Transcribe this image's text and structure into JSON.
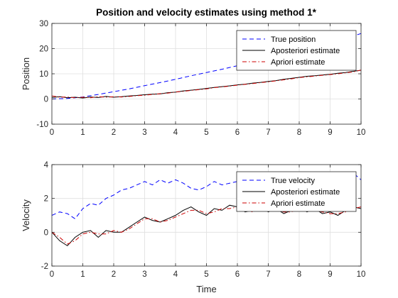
{
  "figure": {
    "background": "#ffffff"
  },
  "chart_data": [
    {
      "type": "line",
      "title": "Position and velocity estimates using method 1*",
      "xlabel": "",
      "ylabel": "Position",
      "xlim": [
        0,
        10
      ],
      "ylim": [
        -10,
        30
      ],
      "xticks": [
        0,
        1,
        2,
        3,
        4,
        5,
        6,
        7,
        8,
        9,
        10
      ],
      "yticks": [
        -10,
        0,
        10,
        20,
        30
      ],
      "grid": true,
      "legend_position": "top-right",
      "series": [
        {
          "name": "True position",
          "color": "#0000ff",
          "style": "dashed",
          "x": [
            0,
            0.5,
            1,
            1.5,
            2,
            2.5,
            3,
            3.5,
            4,
            4.5,
            5,
            5.5,
            6,
            6.5,
            7,
            7.5,
            8,
            8.5,
            9,
            9.5,
            10
          ],
          "y": [
            0,
            0.2,
            0.8,
            1.8,
            2.9,
            4.0,
            5.3,
            6.5,
            7.8,
            9.2,
            10.5,
            11.8,
            13.2,
            14.5,
            15.8,
            17.2,
            18.8,
            20.3,
            22.0,
            24.0,
            26.0
          ]
        },
        {
          "name": "Aposteriori estimate",
          "color": "#000000",
          "style": "solid",
          "x": [
            0,
            0.25,
            0.5,
            0.75,
            1,
            1.25,
            1.5,
            1.75,
            2,
            2.25,
            2.5,
            2.75,
            3,
            3.25,
            3.5,
            3.75,
            4,
            4.25,
            4.5,
            4.75,
            5,
            5.25,
            5.5,
            5.75,
            6,
            6.25,
            6.5,
            6.75,
            7,
            7.25,
            7.5,
            7.75,
            8,
            8.25,
            8.5,
            8.75,
            9,
            9.25,
            9.5,
            9.75,
            10
          ],
          "y": [
            0.6,
            0.9,
            0.5,
            0.7,
            0.4,
            0.8,
            0.6,
            1.0,
            0.7,
            0.9,
            1.2,
            1.4,
            1.7,
            1.9,
            2.0,
            2.5,
            2.7,
            3.2,
            3.5,
            3.8,
            4.2,
            4.6,
            4.9,
            5.2,
            5.6,
            5.9,
            6.3,
            6.6,
            7.0,
            7.3,
            7.8,
            8.2,
            8.6,
            9.0,
            9.2,
            9.5,
            9.8,
            10.2,
            10.5,
            11.0,
            11.4
          ]
        },
        {
          "name": "Apriori estimate",
          "color": "#cc0000",
          "style": "dashdot",
          "x": [
            0,
            0.25,
            0.5,
            0.75,
            1,
            1.25,
            1.5,
            1.75,
            2,
            2.25,
            2.5,
            2.75,
            3,
            3.25,
            3.5,
            3.75,
            4,
            4.25,
            4.5,
            4.75,
            5,
            5.25,
            5.5,
            5.75,
            6,
            6.25,
            6.5,
            6.75,
            7,
            7.25,
            7.5,
            7.75,
            8,
            8.25,
            8.5,
            8.75,
            9,
            9.25,
            9.5,
            9.75,
            10
          ],
          "y": [
            1.2,
            0.7,
            0.8,
            0.5,
            0.7,
            0.5,
            0.9,
            0.7,
            0.9,
            0.8,
            1.0,
            1.3,
            1.5,
            1.8,
            2.1,
            2.3,
            2.8,
            3.0,
            3.4,
            3.7,
            4.0,
            4.5,
            4.8,
            5.1,
            5.5,
            5.8,
            6.1,
            6.5,
            6.8,
            7.2,
            7.6,
            8.0,
            8.5,
            8.8,
            9.1,
            9.4,
            9.7,
            10.0,
            10.4,
            10.8,
            11.5
          ]
        }
      ]
    },
    {
      "type": "line",
      "title": "",
      "xlabel": "Time",
      "ylabel": "Velocity",
      "xlim": [
        0,
        10
      ],
      "ylim": [
        -2,
        4
      ],
      "xticks": [
        0,
        1,
        2,
        3,
        4,
        5,
        6,
        7,
        8,
        9,
        10
      ],
      "yticks": [
        -2,
        0,
        2,
        4
      ],
      "grid": true,
      "legend_position": "top-right",
      "series": [
        {
          "name": "True velocity",
          "color": "#0000ff",
          "style": "dashed",
          "x": [
            0,
            0.25,
            0.5,
            0.75,
            1,
            1.25,
            1.5,
            1.75,
            2,
            2.25,
            2.5,
            2.75,
            3,
            3.25,
            3.5,
            3.75,
            4,
            4.25,
            4.5,
            4.75,
            5,
            5.25,
            5.5,
            5.75,
            6,
            6.25,
            6.5,
            6.75,
            7,
            7.25,
            7.5,
            7.75,
            8,
            8.25,
            8.5,
            8.75,
            9,
            9.25,
            9.5,
            9.75,
            10
          ],
          "y": [
            1.0,
            1.2,
            1.1,
            0.8,
            1.4,
            1.7,
            1.6,
            2.0,
            2.2,
            2.5,
            2.6,
            2.8,
            3.0,
            2.8,
            3.1,
            2.9,
            3.1,
            2.9,
            2.6,
            2.5,
            2.7,
            3.0,
            2.8,
            2.9,
            3.0,
            2.8,
            3.0,
            2.9,
            3.1,
            3.2,
            3.3,
            3.2,
            3.3,
            3.4,
            3.2,
            3.3,
            3.4,
            3.5,
            3.3,
            3.5,
            3.1
          ]
        },
        {
          "name": "Aposteriori estimate",
          "color": "#000000",
          "style": "solid",
          "x": [
            0,
            0.25,
            0.5,
            0.75,
            1,
            1.25,
            1.5,
            1.75,
            2,
            2.25,
            2.5,
            2.75,
            3,
            3.25,
            3.5,
            3.75,
            4,
            4.25,
            4.5,
            4.75,
            5,
            5.25,
            5.5,
            5.75,
            6,
            6.25,
            6.5,
            6.75,
            7,
            7.25,
            7.5,
            7.75,
            8,
            8.25,
            8.5,
            8.75,
            9,
            9.25,
            9.5,
            9.75,
            10
          ],
          "y": [
            0.0,
            -0.5,
            -0.8,
            -0.3,
            0.0,
            0.1,
            -0.3,
            0.1,
            0.0,
            0.0,
            0.3,
            0.6,
            0.9,
            0.7,
            0.6,
            0.8,
            1.0,
            1.3,
            1.5,
            1.2,
            1.0,
            1.4,
            1.3,
            1.6,
            1.5,
            1.2,
            1.3,
            1.5,
            1.2,
            1.4,
            1.1,
            1.3,
            1.5,
            1.2,
            1.4,
            1.1,
            1.2,
            1.0,
            1.3,
            1.5,
            1.4
          ]
        },
        {
          "name": "Apriori estimate",
          "color": "#cc0000",
          "style": "dashdot",
          "x": [
            0,
            0.25,
            0.5,
            0.75,
            1,
            1.25,
            1.5,
            1.75,
            2,
            2.25,
            2.5,
            2.75,
            3,
            3.25,
            3.5,
            3.75,
            4,
            4.25,
            4.5,
            4.75,
            5,
            5.25,
            5.5,
            5.75,
            6,
            6.25,
            6.5,
            6.75,
            7,
            7.25,
            7.5,
            7.75,
            8,
            8.25,
            8.5,
            8.75,
            9,
            9.25,
            9.5,
            9.75,
            10
          ],
          "y": [
            0.0,
            -0.3,
            -0.7,
            -0.5,
            -0.1,
            0.0,
            -0.1,
            -0.1,
            0.1,
            0.0,
            0.2,
            0.5,
            0.8,
            0.8,
            0.6,
            0.7,
            0.9,
            1.1,
            1.3,
            1.3,
            1.1,
            1.2,
            1.4,
            1.4,
            1.5,
            1.3,
            1.2,
            1.4,
            1.3,
            1.3,
            1.2,
            1.2,
            1.4,
            1.3,
            1.3,
            1.2,
            1.1,
            1.1,
            1.2,
            1.4,
            1.5
          ]
        }
      ]
    }
  ]
}
